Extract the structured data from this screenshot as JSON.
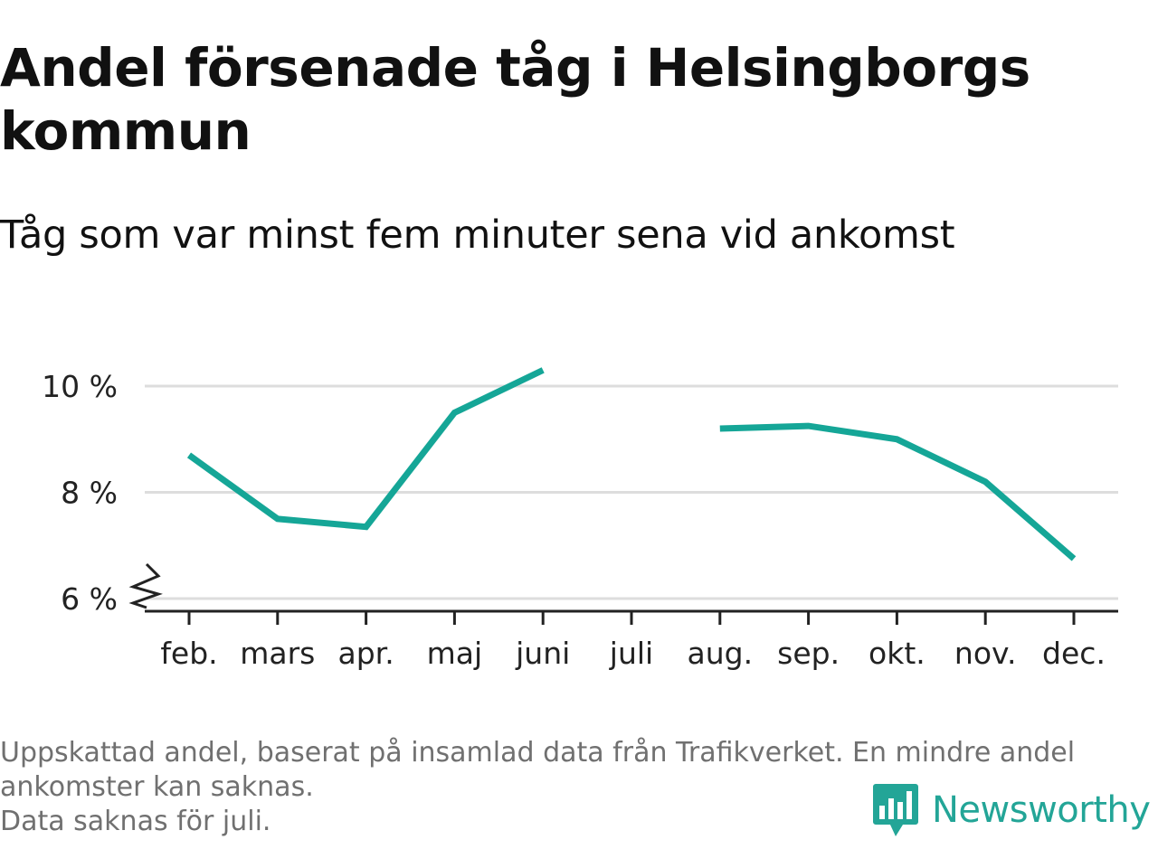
{
  "chart_data": {
    "type": "line",
    "title": "Andel försenade tåg i Helsingborgs kommun",
    "subtitle": "Tåg som var minst fem minuter sena vid ankomst",
    "categories": [
      "feb.",
      "mars",
      "apr.",
      "maj",
      "juni",
      "juli",
      "aug.",
      "sep.",
      "okt.",
      "nov.",
      "dec."
    ],
    "series": [
      {
        "values": [
          8.7,
          7.5,
          7.35,
          9.5,
          10.3,
          null,
          9.2,
          9.25,
          9.0,
          8.2,
          6.75
        ],
        "color": "#15a697"
      }
    ],
    "yticks": [
      6,
      8,
      10
    ],
    "ytick_labels": [
      "6 %",
      "8 %",
      "10 %"
    ],
    "ylim": [
      5.75,
      10.5
    ],
    "y_axis_break": true,
    "grid": true,
    "legend": "none",
    "xlabel": "",
    "ylabel": ""
  },
  "footnotes": [
    "Uppskattad andel, baserat på insamlad data från Trafikverket. En mindre andel ankomster kan saknas.",
    "Data saknas för juli."
  ],
  "brand": {
    "name": "Newsworthy",
    "icon": "newsworthy-logo-icon",
    "color": "#23a597"
  }
}
